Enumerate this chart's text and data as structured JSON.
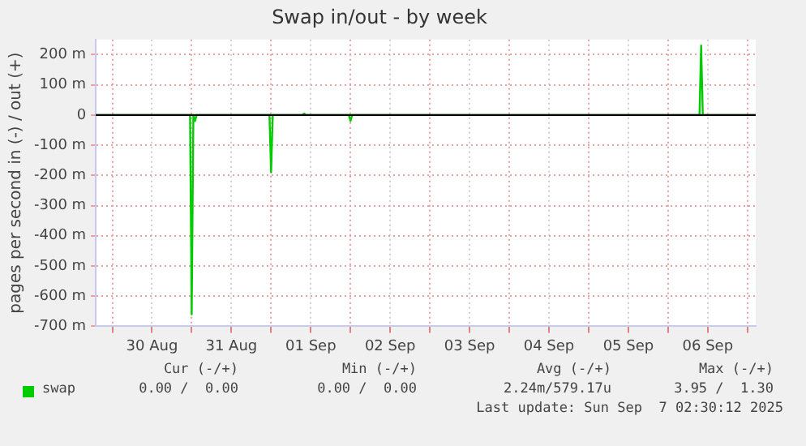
{
  "chart_data": {
    "type": "line",
    "title": "Swap in/out - by week",
    "ylabel": "pages per second in (-) / out (+)",
    "x": [
      "2025-08-29T19:00",
      "2025-08-30T23:30",
      "2025-08-31T00:00",
      "2025-08-31T00:30",
      "2025-08-31T01:00",
      "2025-08-31T01:30",
      "2025-08-31T23:30",
      "2025-09-01T00:00",
      "2025-09-01T00:30",
      "2025-09-01T09:30",
      "2025-09-01T10:00",
      "2025-09-01T10:30",
      "2025-09-01T23:30",
      "2025-09-02T00:00",
      "2025-09-02T00:30",
      "2025-09-06T09:30",
      "2025-09-06T10:00",
      "2025-09-06T10:30",
      "2025-09-07T02:30"
    ],
    "series": [
      {
        "name": "swap",
        "color": "#00cc00",
        "values": [
          0,
          0,
          -660,
          0,
          -20,
          0,
          0,
          -190,
          0,
          0,
          5,
          0,
          0,
          -20,
          0,
          0,
          230,
          0,
          0
        ]
      }
    ],
    "xlim": [
      "2025-08-29T19:00",
      "2025-09-07T02:30"
    ],
    "xticks": [
      {
        "value": "2025-08-30T00:00",
        "label": null
      },
      {
        "value": "2025-08-30T12:00",
        "label": "30 Aug"
      },
      {
        "value": "2025-08-31T00:00",
        "label": null
      },
      {
        "value": "2025-08-31T12:00",
        "label": "31 Aug"
      },
      {
        "value": "2025-09-01T00:00",
        "label": null
      },
      {
        "value": "2025-09-01T12:00",
        "label": "01 Sep"
      },
      {
        "value": "2025-09-02T00:00",
        "label": null
      },
      {
        "value": "2025-09-02T12:00",
        "label": "02 Sep"
      },
      {
        "value": "2025-09-03T00:00",
        "label": null
      },
      {
        "value": "2025-09-03T12:00",
        "label": "03 Sep"
      },
      {
        "value": "2025-09-04T00:00",
        "label": null
      },
      {
        "value": "2025-09-04T12:00",
        "label": "04 Sep"
      },
      {
        "value": "2025-09-05T00:00",
        "label": null
      },
      {
        "value": "2025-09-05T12:00",
        "label": "05 Sep"
      },
      {
        "value": "2025-09-06T00:00",
        "label": null
      },
      {
        "value": "2025-09-06T12:00",
        "label": "06 Sep"
      },
      {
        "value": "2025-09-07T00:00",
        "label": null
      }
    ],
    "ylim": [
      -700,
      250
    ],
    "yticks": [
      {
        "value": -700,
        "label": "-700 m"
      },
      {
        "value": -600,
        "label": "-600 m"
      },
      {
        "value": -500,
        "label": "-500 m"
      },
      {
        "value": -400,
        "label": "-400 m"
      },
      {
        "value": -300,
        "label": "-300 m"
      },
      {
        "value": -200,
        "label": "-200 m"
      },
      {
        "value": -100,
        "label": "-100 m"
      },
      0,
      {
        "value": 100,
        "label": "100 m"
      },
      {
        "value": 200,
        "label": "200 m"
      }
    ],
    "ref_lines": [
      {
        "axis": "y",
        "value": 0,
        "color": "#000000"
      }
    ],
    "grid": true,
    "legend": "bottom",
    "marker": "none",
    "line_style": "solid",
    "annotations": [
      "Cur (-/+)",
      "Min (-/+)",
      "Avg (-/+)",
      "Max (-/+)",
      "0.00 /  0.00",
      "0.00 /  0.00",
      "2.24m/579.17u",
      "3.95 /  1.30",
      "Last update: Sun Sep  7 02:30:12 2025"
    ]
  }
}
